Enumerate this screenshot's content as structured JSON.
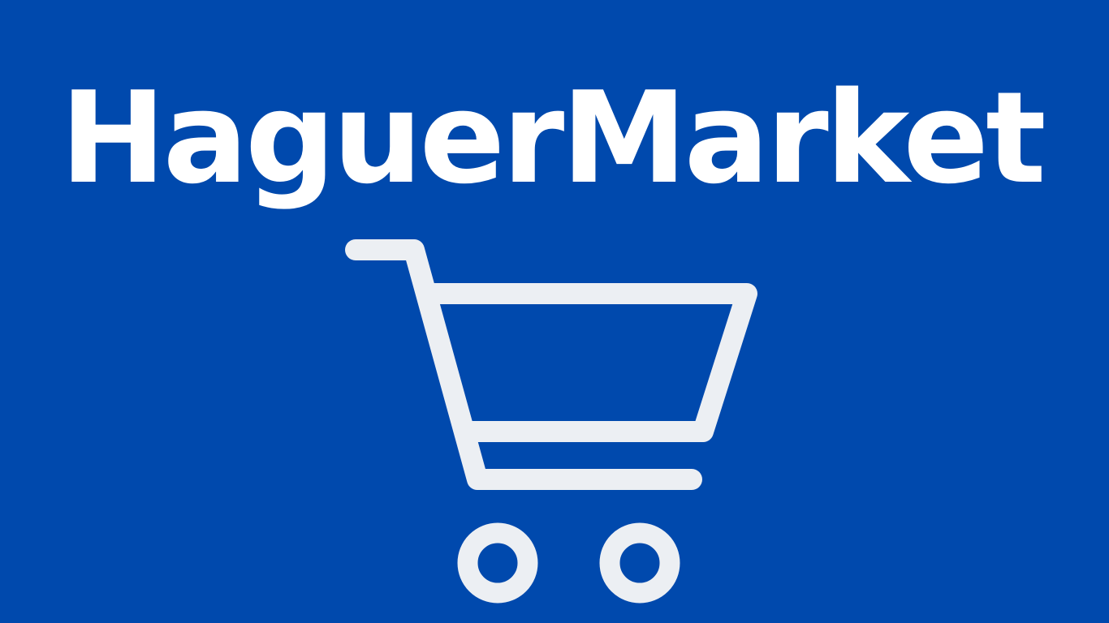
{
  "brand": {
    "name": "HaguerMarket"
  },
  "logo": {
    "icon": "shopping-cart-icon",
    "background_color": "#0049ad",
    "text_color": "#ffffff",
    "icon_color": "#eceff3"
  }
}
